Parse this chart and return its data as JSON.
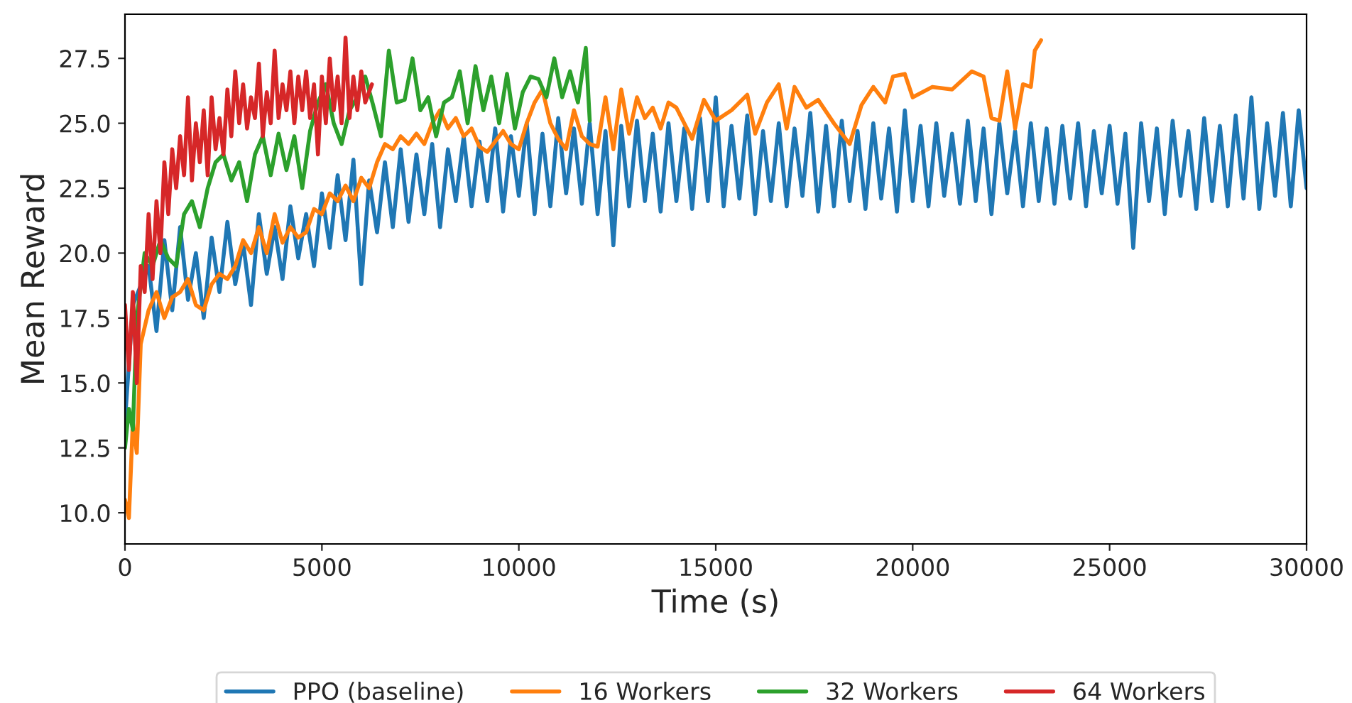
{
  "chart_data": {
    "type": "line",
    "xlabel": "Time (s)",
    "ylabel": "Mean Reward",
    "xlim": [
      0,
      30000
    ],
    "ylim": [
      8.8,
      29.2
    ],
    "xticks": [
      0,
      5000,
      10000,
      15000,
      20000,
      25000,
      30000
    ],
    "yticks": [
      {
        "value": 10,
        "label": "10.0"
      },
      {
        "value": 12.5,
        "label": "12.5"
      },
      {
        "value": 15,
        "label": "15.0"
      },
      {
        "value": 17.5,
        "label": "17.5"
      },
      {
        "value": 20,
        "label": "20.0"
      },
      {
        "value": 22.5,
        "label": "22.5"
      },
      {
        "value": 25,
        "label": "25.0"
      },
      {
        "value": 27.5,
        "label": "27.5"
      }
    ],
    "grid": false,
    "legend": "bottom",
    "marker": "none",
    "line_style": "solid",
    "series": [
      {
        "name": "PPO (baseline)",
        "color": "#1f77b4",
        "x": [
          0,
          200,
          400,
          600,
          800,
          1000,
          1200,
          1400,
          1600,
          1800,
          2000,
          2200,
          2400,
          2600,
          2800,
          3000,
          3200,
          3400,
          3600,
          3800,
          4000,
          4200,
          4400,
          4600,
          4800,
          5000,
          5200,
          5400,
          5600,
          5800,
          6000,
          6200,
          6400,
          6600,
          6800,
          7000,
          7200,
          7400,
          7600,
          7800,
          8000,
          8200,
          8400,
          8600,
          8800,
          9000,
          9200,
          9400,
          9600,
          9800,
          10000,
          10200,
          10400,
          10600,
          10800,
          11000,
          11200,
          11400,
          11600,
          11800,
          12000,
          12200,
          12400,
          12600,
          12800,
          13000,
          13200,
          13400,
          13600,
          13800,
          14000,
          14200,
          14400,
          14600,
          14800,
          15000,
          15200,
          15400,
          15600,
          15800,
          16000,
          16200,
          16400,
          16600,
          16800,
          17000,
          17200,
          17400,
          17600,
          17800,
          18000,
          18200,
          18400,
          18600,
          18800,
          19000,
          19200,
          19400,
          19600,
          19800,
          20000,
          20200,
          20400,
          20600,
          20800,
          21000,
          21200,
          21400,
          21600,
          21800,
          22000,
          22200,
          22400,
          22600,
          22800,
          23000,
          23200,
          23400,
          23600,
          23800,
          24000,
          24200,
          24400,
          24600,
          24800,
          25000,
          25200,
          25400,
          25600,
          25800,
          26000,
          26200,
          26400,
          26600,
          26800,
          27000,
          27200,
          27400,
          27600,
          27800,
          28000,
          28200,
          28400,
          28600,
          28800,
          29000,
          29200,
          29400,
          29600,
          29800,
          30000
        ],
        "values": [
          13.5,
          18.0,
          null,
          19.5,
          17.0,
          20.5,
          17.8,
          21.0,
          18.2,
          20.0,
          17.5,
          20.6,
          18.5,
          21.2,
          18.8,
          20.4,
          18.0,
          21.5,
          19.2,
          21.0,
          19.0,
          21.8,
          19.8,
          21.5,
          19.5,
          22.3,
          20.2,
          23.0,
          20.5,
          23.6,
          18.8,
          22.8,
          20.8,
          23.5,
          21.0,
          24.0,
          21.2,
          23.8,
          21.5,
          24.2,
          21.0,
          24.0,
          22.0,
          24.5,
          21.8,
          24.3,
          22.0,
          24.8,
          21.6,
          24.5,
          22.2,
          25.0,
          21.5,
          24.6,
          21.8,
          25.2,
          22.3,
          24.8,
          21.9,
          25.0,
          21.5,
          24.7,
          20.3,
          24.9,
          21.8,
          25.1,
          22.0,
          24.6,
          21.6,
          25.0,
          22.0,
          24.8,
          21.7,
          25.2,
          22.0,
          26.0,
          21.8,
          24.9,
          22.1,
          25.3,
          21.5,
          24.7,
          22.0,
          25.0,
          21.8,
          24.8,
          22.2,
          25.4,
          21.6,
          24.9,
          21.8,
          25.1,
          22.0,
          24.7,
          21.7,
          25.0,
          22.1,
          24.8,
          21.6,
          25.5,
          22.0,
          24.9,
          21.8,
          25.0,
          22.2,
          24.6,
          21.9,
          25.1,
          22.0,
          24.8,
          21.5,
          25.0,
          22.3,
          24.7,
          21.8,
          25.0,
          22.0,
          24.8,
          21.9,
          24.9,
          22.1,
          25.0,
          21.8,
          24.7,
          22.3,
          24.9,
          21.9,
          24.6,
          20.2,
          25.0,
          22.0,
          24.8,
          21.5,
          25.1,
          22.2,
          24.7,
          21.7,
          25.2,
          22.0,
          24.9,
          21.8,
          25.3,
          22.1,
          26.0,
          21.7,
          25.0,
          22.2,
          25.4,
          21.8,
          25.5,
          22.5
        ]
      },
      {
        "name": "16 Workers",
        "color": "#ff7f0e",
        "x": [
          0,
          100,
          200,
          300,
          400,
          600,
          800,
          1000,
          1200,
          1400,
          1600,
          1800,
          2000,
          2200,
          2400,
          2600,
          2800,
          3000,
          3200,
          3400,
          3600,
          3800,
          4000,
          4200,
          4400,
          4600,
          4800,
          5000,
          5200,
          5400,
          5600,
          5800,
          6000,
          6200,
          6400,
          6600,
          6800,
          7000,
          7200,
          7400,
          7600,
          7800,
          8000,
          8200,
          8400,
          8600,
          8800,
          9000,
          9200,
          9400,
          9600,
          9800,
          10000,
          10200,
          10400,
          10600,
          10800,
          11000,
          11200,
          11400,
          11600,
          11800,
          12000,
          12200,
          12400,
          12600,
          12800,
          13000,
          13200,
          13400,
          13600,
          13800,
          14000,
          14400,
          14700,
          15000,
          15400,
          15800,
          16000,
          16300,
          16600,
          16800,
          17000,
          17300,
          17600,
          18000,
          18400,
          18700,
          19000,
          19300,
          19500,
          19800,
          20000,
          20500,
          21000,
          21500,
          21800,
          22000,
          22200,
          22400,
          22600,
          22800,
          23000,
          23100,
          23260
        ],
        "values": [
          10.5,
          9.8,
          13.5,
          12.3,
          16.5,
          17.8,
          18.5,
          17.5,
          18.3,
          18.5,
          19.0,
          18.0,
          17.8,
          18.8,
          19.2,
          19.0,
          19.5,
          20.5,
          20.0,
          21.0,
          20.0,
          21.5,
          20.4,
          21.0,
          20.6,
          20.8,
          21.7,
          21.5,
          22.3,
          22.0,
          22.6,
          22.0,
          22.9,
          22.5,
          23.5,
          24.2,
          24.0,
          24.5,
          24.2,
          24.6,
          24.2,
          25.0,
          25.5,
          24.8,
          25.2,
          24.5,
          24.8,
          24.1,
          23.9,
          24.3,
          24.7,
          24.2,
          24.0,
          25.0,
          25.8,
          26.3,
          25.0,
          24.4,
          24.0,
          25.5,
          24.5,
          24.2,
          24.1,
          26.0,
          24.0,
          26.3,
          24.6,
          26.0,
          25.2,
          25.6,
          24.8,
          25.8,
          25.6,
          24.4,
          25.9,
          25.1,
          25.5,
          26.1,
          24.6,
          25.8,
          26.5,
          24.8,
          26.4,
          25.6,
          25.9,
          25.0,
          24.2,
          25.7,
          26.4,
          25.8,
          26.8,
          26.9,
          26.0,
          26.4,
          26.3,
          27.0,
          26.8,
          25.2,
          25.1,
          27.0,
          24.8,
          26.5,
          26.4,
          27.8,
          28.2
        ]
      },
      {
        "name": "32 Workers",
        "color": "#2ca02c",
        "x": [
          0,
          100,
          200,
          300,
          400,
          500,
          700,
          900,
          1100,
          1300,
          1500,
          1700,
          1900,
          2100,
          2300,
          2500,
          2700,
          2900,
          3100,
          3300,
          3500,
          3700,
          3900,
          4100,
          4300,
          4500,
          4700,
          4900,
          5100,
          5300,
          5500,
          5700,
          5900,
          6100,
          6300,
          6500,
          6700,
          6900,
          7100,
          7300,
          7500,
          7700,
          7900,
          8100,
          8300,
          8500,
          8700,
          8900,
          9100,
          9300,
          9500,
          9700,
          9900,
          10100,
          10300,
          10500,
          10700,
          10900,
          11100,
          11300,
          11500,
          11700,
          11800
        ],
        "values": [
          12.5,
          14.0,
          13.2,
          17.5,
          null,
          20.0,
          19.5,
          20.5,
          19.8,
          19.5,
          21.5,
          22.0,
          21.0,
          22.5,
          23.5,
          23.8,
          22.8,
          23.5,
          22.0,
          23.8,
          24.5,
          23.0,
          24.6,
          23.2,
          24.5,
          22.5,
          24.7,
          25.8,
          26.5,
          25.0,
          24.2,
          25.5,
          26.0,
          26.8,
          25.7,
          24.5,
          27.8,
          25.8,
          25.9,
          27.5,
          25.5,
          26.0,
          24.5,
          25.8,
          26.0,
          27.0,
          25.0,
          27.2,
          25.5,
          26.8,
          25.0,
          26.9,
          24.8,
          26.2,
          26.8,
          26.7,
          26.0,
          27.5,
          26.0,
          27.0,
          25.8,
          27.9,
          25.1
        ]
      },
      {
        "name": "64 Workers",
        "color": "#d62728",
        "x": [
          0,
          100,
          200,
          300,
          400,
          500,
          600,
          700,
          800,
          900,
          1000,
          1100,
          1200,
          1300,
          1400,
          1500,
          1600,
          1700,
          1800,
          1900,
          2000,
          2100,
          2200,
          2300,
          2400,
          2500,
          2600,
          2700,
          2800,
          2900,
          3000,
          3100,
          3200,
          3300,
          3400,
          3500,
          3600,
          3700,
          3800,
          3900,
          4000,
          4100,
          4200,
          4300,
          4400,
          4500,
          4600,
          4700,
          4800,
          4900,
          5000,
          5100,
          5200,
          5300,
          5400,
          5500,
          5600,
          5700,
          5800,
          5900,
          6000,
          6100,
          6270
        ],
        "values": [
          18.0,
          15.5,
          18.5,
          15.0,
          19.5,
          18.5,
          21.5,
          19.0,
          22.0,
          20.0,
          23.5,
          21.5,
          24.0,
          22.5,
          24.5,
          23.0,
          26.0,
          22.8,
          25.0,
          23.5,
          25.5,
          23.0,
          26.0,
          24.0,
          25.2,
          23.8,
          26.3,
          24.5,
          27.0,
          25.0,
          26.5,
          24.8,
          26.0,
          25.2,
          27.3,
          24.5,
          26.2,
          25.0,
          27.8,
          25.2,
          26.5,
          25.5,
          27.0,
          25.0,
          26.8,
          25.5,
          27.0,
          25.2,
          26.5,
          23.8,
          26.8,
          25.0,
          27.5,
          25.5,
          26.8,
          25.0,
          28.3,
          25.2,
          26.8,
          25.5,
          27.0,
          25.8,
          26.5
        ]
      }
    ]
  }
}
